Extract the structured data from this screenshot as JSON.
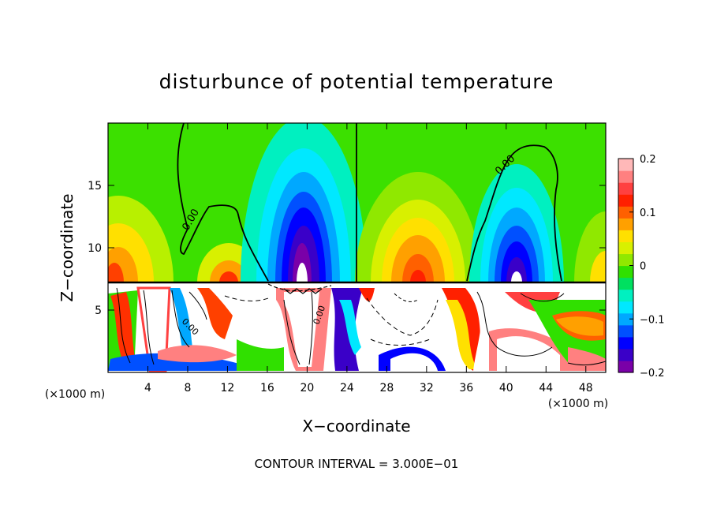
{
  "chart_data": {
    "type": "heatmap",
    "title": "disturbunce of potential temperature",
    "xlabel": "X−coordinate",
    "ylabel": "Z−coordinate",
    "x_unit_left": "(×1000 m)",
    "x_unit_right": "(×1000 m)",
    "footer": "CONTOUR INTERVAL = 3.000E−01",
    "xlim": [
      0,
      50
    ],
    "ylim": [
      0,
      20
    ],
    "x_ticks": [
      4,
      8,
      12,
      16,
      20,
      24,
      28,
      32,
      36,
      40,
      44,
      48
    ],
    "y_ticks": [
      5,
      10,
      15
    ],
    "colorbar": {
      "range": [
        -0.2,
        0.2
      ],
      "tick_values": [
        0.2,
        0.1,
        0,
        -0.1,
        -0.2
      ],
      "tick_labels": [
        "0.2",
        "0.1",
        "0",
        "−0.1",
        "−0.2"
      ],
      "colors": [
        "#7a00a8",
        "#3a00c8",
        "#0000ff",
        "#0050ff",
        "#00a8ff",
        "#00e8ff",
        "#00f0c0",
        "#00e060",
        "#30e000",
        "#90e800",
        "#d8f000",
        "#ffe000",
        "#ffa000",
        "#ff6000",
        "#ff2000",
        "#ff4040",
        "#ff8080",
        "#ffb8b8"
      ]
    },
    "contour_label": "0.00",
    "contour_levels_visible": [
      "0.00"
    ],
    "upper_layer_features": [
      {
        "type": "positive",
        "x_center": 2,
        "peak": 0.13
      },
      {
        "type": "positive",
        "x_center": 14,
        "peak": 0.1
      },
      {
        "type": "negative",
        "x_center": 20,
        "peak": -0.25
      },
      {
        "type": "positive",
        "x_center": 31,
        "peak": 0.16
      },
      {
        "type": "negative",
        "x_center": 40.5,
        "peak": -0.23
      }
    ],
    "layer_interface_z": 7.2,
    "grid": false,
    "legend": "colorbar-right"
  }
}
